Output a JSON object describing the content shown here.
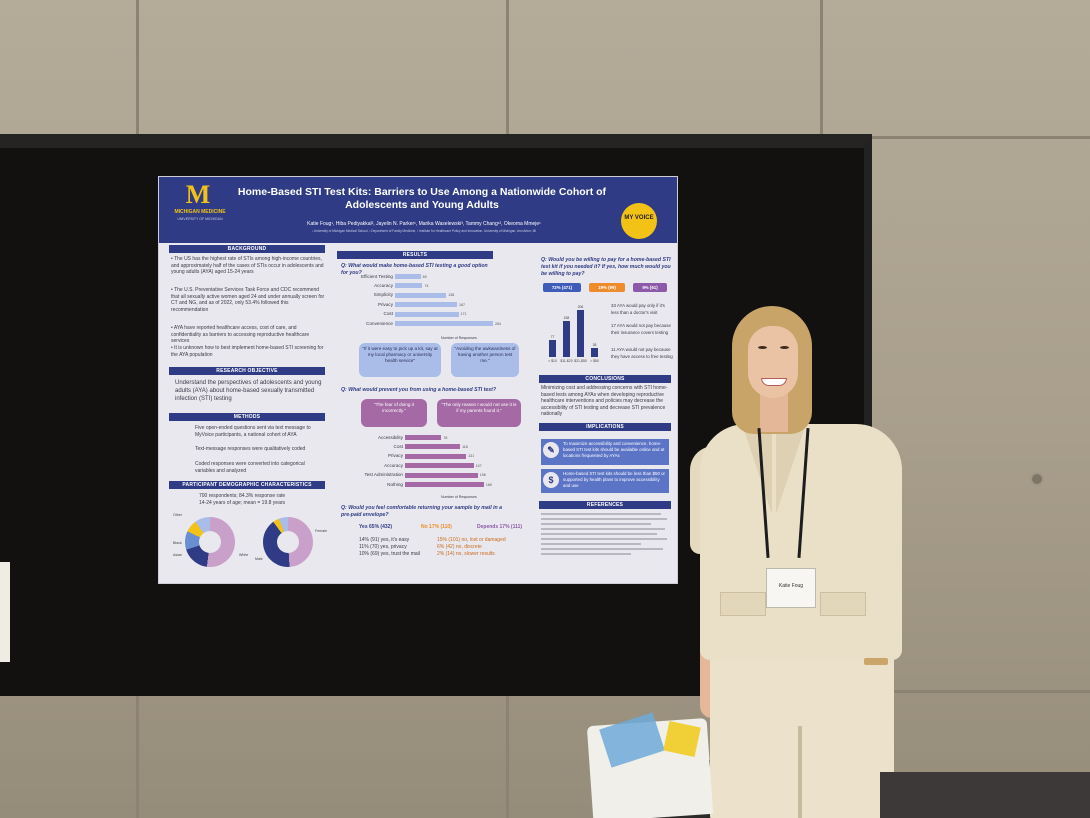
{
  "poster": {
    "logo_letter": "M",
    "logo_name": "MICHIGAN MEDICINE",
    "logo_sub": "UNIVERSITY OF MICHIGAN",
    "title": "Home-Based STI Test Kits: Barriers to Use Among a Nationwide Cohort of Adolescents and Young Adults",
    "authors": "Katie Foug¹, Hiba Pediyakkal², Jayelin N. Parker¹, Marika Waselewski³, Tammy Chang¹², Okeoma Mmeje¹",
    "affiliations": "¹ University of Michigan Medical School, ² Department of Family Medicine, ³ Institute for Healthcare Policy and Innovation, University of Michigan, Ann Arbor, MI",
    "myvoice_label": "MY VOICE",
    "background": {
      "heading": "BACKGROUND",
      "bullets": [
        "The US has the highest rate of STIs among high-income countries, and approximately half of the cases of STIs occur in adolescents and young adults (AYA) aged 15-24 years",
        "The U.S. Preventative Services Task Force and CDC recommend that all sexually active women aged 24 and under annually screen for CT and NG, and as of 2022, only 53.4% followed this recommendation",
        "AYA have reported healthcare access, cost of care, and confidentiality as barriers to accessing reproductive healthcare services",
        "It is unknown how to best implement home-based STI screening for the AYA population"
      ]
    },
    "research_objective": {
      "heading": "RESEARCH OBJECTIVE",
      "text": "Understand the perspectives of adolescents and young adults (AYA) about home-based sexually transmitted infection (STI) testing"
    },
    "methods": {
      "heading": "METHODS",
      "items": [
        "Five open-ended questions sent via text message to MyVoice participants, a national cohort of AYA",
        "Text-message responses were qualitatively coded",
        "Coded responses were converted into categorical variables and analyzed"
      ]
    },
    "demographics": {
      "heading": "PARTICIPANT DEMOGRAPHIC CHARACTERISTICS",
      "line1": "700 respondents; 84.3% response rate",
      "line2": "14-24 years of age; mean = 19.8 years",
      "race_labels": [
        "Other",
        "Black",
        "Asian",
        "White"
      ],
      "gender_labels": [
        "Male",
        "Female"
      ]
    },
    "results": {
      "heading": "RESULTS",
      "q1": "Q: What would make home-based STI testing a good option for you?",
      "q1_categories": [
        "Efficient Testing",
        "Accuracy",
        "Simplicity",
        "Privacy",
        "Cost",
        "Convenience"
      ],
      "q1_values": [
        69,
        74,
        138,
        167,
        171,
        264
      ],
      "q1_axis": "Number of Responses",
      "quote1": "\"If it were easy to pick up a kit, say at my local pharmacy or university health service\"",
      "quote2": "\"Avoiding the awkwardness of having another person test me.\"",
      "q2": "Q: What would prevent you from using a home-based STI test?",
      "quote3": "\"The fear of doing it incorrectly.\"",
      "quote4": "\"The only reason I would not use it is if my parents found it.\"",
      "q2_categories": [
        "Accessibility",
        "Cost",
        "Privacy",
        "Accuracy",
        "Test Administration",
        "Nothing"
      ],
      "q2_values": [
        78,
        118,
        131,
        147,
        156,
        169
      ],
      "q2_axis": "Number of Responses",
      "q3": "Q: Would you feel comfortable returning your sample by mail in a pre-paid envelope?",
      "q3_answers": [
        "Yes 65% (432)",
        "No 17% (110)",
        "Depends 17% (111)"
      ],
      "q3_yes_detail": [
        "14% (91) yes, it's easy",
        "11% (70) yes, privacy",
        "10% (69) yes, trust the mail"
      ],
      "q3_no_detail": [
        "15% (101) no, lost or damaged",
        "6% (42) no, discrete",
        "2% (14) no, slower results"
      ]
    },
    "pay": {
      "q": "Q: Would you be willing to pay for a home-based STI test kit if you needed it? If yes, how much would you be willing to pay?",
      "pills": [
        "72% (471)",
        "19% (99)",
        "9% (61)"
      ],
      "bar_values": [
        77,
        158,
        206,
        38
      ],
      "bar_labels": [
        "< $10",
        "$11-$20",
        "$21-$50",
        "> $50"
      ],
      "ylabel": "Number of Responses",
      "notes": [
        "33 AYA would pay only if it's less than a doctor's visit",
        "17 AYA would not pay because their insurance covers testing",
        "11 AYA would not pay because they have access to free testing"
      ]
    },
    "conclusions": {
      "heading": "CONCLUSIONS",
      "text": "Minimizing cost and addressing concerns with STI home-based tests among AYAs when developing reproductive healthcare interventions and policies may decrease the accessibility of STI testing and decrease STI prevalence nationally"
    },
    "implications": {
      "heading": "IMPLICATIONS",
      "items": [
        "To maximize accessibility and convenience, home-based STI test kits should be available online and at locations frequented by AYAs",
        "Home-based STI test kits should be less than $50 or supported by health plans to improve accessibility and use"
      ]
    },
    "references": {
      "heading": "REFERENCES"
    }
  },
  "badge": {
    "name": "Katie Foug"
  },
  "colors": {
    "poster_navy": "#2f3b84",
    "poster_gold": "#f3c217",
    "bar_light_blue": "#a9bde8",
    "bar_mauve": "#a56aa6",
    "pill_blue": "#3f5db8",
    "pill_orange": "#ee8b2b",
    "pill_purple": "#8c5aa8"
  }
}
